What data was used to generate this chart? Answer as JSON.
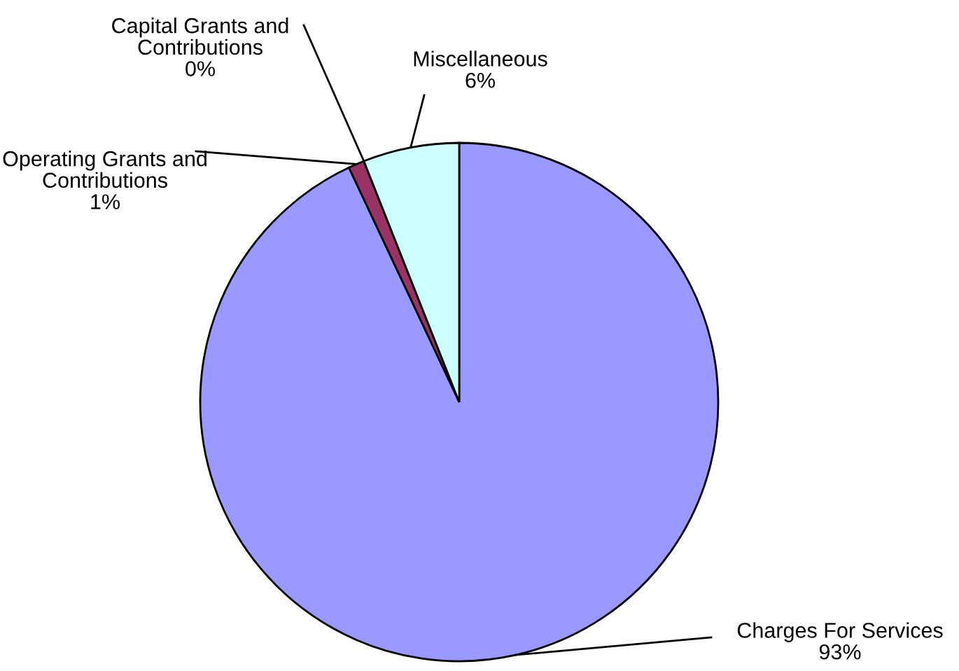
{
  "chart_data": {
    "type": "pie",
    "categories": [
      "Charges For Services",
      "Operating Grants and\nContributions",
      "Capital Grants and\nContributions",
      "Miscellaneous"
    ],
    "values": [
      93,
      1,
      0,
      6
    ],
    "colors": [
      "#9999ff",
      "#993366",
      "#ffffcc",
      "#ccffff"
    ],
    "value_labels": [
      "93%",
      "1%",
      "0%",
      "6%"
    ],
    "legend": false
  }
}
